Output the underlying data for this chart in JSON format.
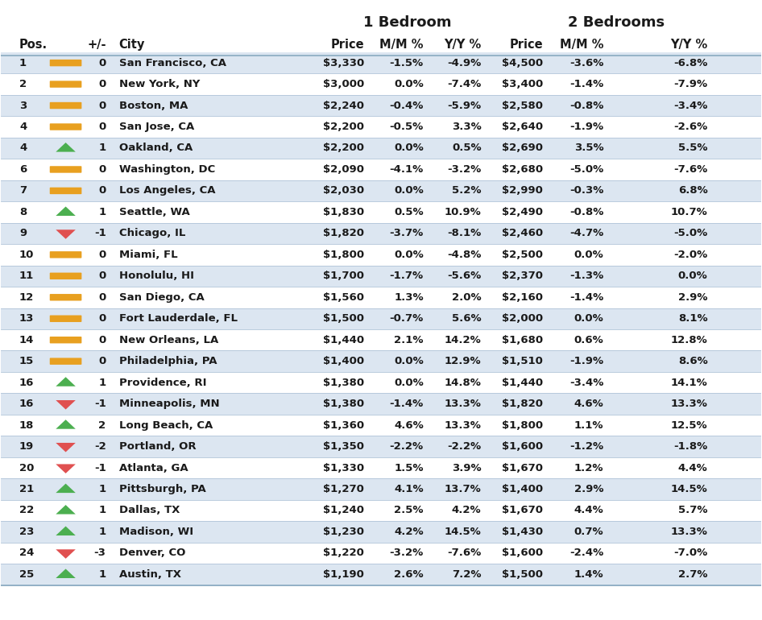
{
  "header1": "1 Bedroom",
  "header2": "2 Bedrooms",
  "rows": [
    [
      1,
      0,
      "San Francisco, CA",
      "$3,330",
      "-1.5%",
      "-4.9%",
      "$4,500",
      "-3.6%",
      "-6.8%"
    ],
    [
      2,
      0,
      "New York, NY",
      "$3,000",
      "0.0%",
      "-7.4%",
      "$3,400",
      "-1.4%",
      "-7.9%"
    ],
    [
      3,
      0,
      "Boston, MA",
      "$2,240",
      "-0.4%",
      "-5.9%",
      "$2,580",
      "-0.8%",
      "-3.4%"
    ],
    [
      4,
      0,
      "San Jose, CA",
      "$2,200",
      "-0.5%",
      "3.3%",
      "$2,640",
      "-1.9%",
      "-2.6%"
    ],
    [
      4,
      1,
      "Oakland, CA",
      "$2,200",
      "0.0%",
      "0.5%",
      "$2,690",
      "3.5%",
      "5.5%"
    ],
    [
      6,
      0,
      "Washington, DC",
      "$2,090",
      "-4.1%",
      "-3.2%",
      "$2,680",
      "-5.0%",
      "-7.6%"
    ],
    [
      7,
      0,
      "Los Angeles, CA",
      "$2,030",
      "0.0%",
      "5.2%",
      "$2,990",
      "-0.3%",
      "6.8%"
    ],
    [
      8,
      1,
      "Seattle, WA",
      "$1,830",
      "0.5%",
      "10.9%",
      "$2,490",
      "-0.8%",
      "10.7%"
    ],
    [
      9,
      -1,
      "Chicago, IL",
      "$1,820",
      "-3.7%",
      "-8.1%",
      "$2,460",
      "-4.7%",
      "-5.0%"
    ],
    [
      10,
      0,
      "Miami, FL",
      "$1,800",
      "0.0%",
      "-4.8%",
      "$2,500",
      "0.0%",
      "-2.0%"
    ],
    [
      11,
      0,
      "Honolulu, HI",
      "$1,700",
      "-1.7%",
      "-5.6%",
      "$2,370",
      "-1.3%",
      "0.0%"
    ],
    [
      12,
      0,
      "San Diego, CA",
      "$1,560",
      "1.3%",
      "2.0%",
      "$2,160",
      "-1.4%",
      "2.9%"
    ],
    [
      13,
      0,
      "Fort Lauderdale, FL",
      "$1,500",
      "-0.7%",
      "5.6%",
      "$2,000",
      "0.0%",
      "8.1%"
    ],
    [
      14,
      0,
      "New Orleans, LA",
      "$1,440",
      "2.1%",
      "14.2%",
      "$1,680",
      "0.6%",
      "12.8%"
    ],
    [
      15,
      0,
      "Philadelphia, PA",
      "$1,400",
      "0.0%",
      "12.9%",
      "$1,510",
      "-1.9%",
      "8.6%"
    ],
    [
      16,
      1,
      "Providence, RI",
      "$1,380",
      "0.0%",
      "14.8%",
      "$1,440",
      "-3.4%",
      "14.1%"
    ],
    [
      16,
      -1,
      "Minneapolis, MN",
      "$1,380",
      "-1.4%",
      "13.3%",
      "$1,820",
      "4.6%",
      "13.3%"
    ],
    [
      18,
      2,
      "Long Beach, CA",
      "$1,360",
      "4.6%",
      "13.3%",
      "$1,800",
      "1.1%",
      "12.5%"
    ],
    [
      19,
      -2,
      "Portland, OR",
      "$1,350",
      "-2.2%",
      "-2.2%",
      "$1,600",
      "-1.2%",
      "-1.8%"
    ],
    [
      20,
      -1,
      "Atlanta, GA",
      "$1,330",
      "1.5%",
      "3.9%",
      "$1,670",
      "1.2%",
      "4.4%"
    ],
    [
      21,
      1,
      "Pittsburgh, PA",
      "$1,270",
      "4.1%",
      "13.7%",
      "$1,400",
      "2.9%",
      "14.5%"
    ],
    [
      22,
      1,
      "Dallas, TX",
      "$1,240",
      "2.5%",
      "4.2%",
      "$1,670",
      "4.4%",
      "5.7%"
    ],
    [
      23,
      1,
      "Madison, WI",
      "$1,230",
      "4.2%",
      "14.5%",
      "$1,430",
      "0.7%",
      "13.3%"
    ],
    [
      24,
      -3,
      "Denver, CO",
      "$1,220",
      "-3.2%",
      "-7.6%",
      "$1,600",
      "-2.4%",
      "-7.0%"
    ],
    [
      25,
      1,
      "Austin, TX",
      "$1,190",
      "2.6%",
      "7.2%",
      "$1,500",
      "1.4%",
      "2.7%"
    ]
  ],
  "bg_color_even": "#dce6f1",
  "bg_color_odd": "#ffffff",
  "text_color": "#1a1a1a",
  "arrow_up_color": "#4caf50",
  "arrow_down_color": "#e05050",
  "arrow_flat_color": "#e8a020",
  "line_color": "#b0c4d8",
  "font_size": 9.5,
  "header_font_size": 10.5,
  "group_header_font_size": 13
}
